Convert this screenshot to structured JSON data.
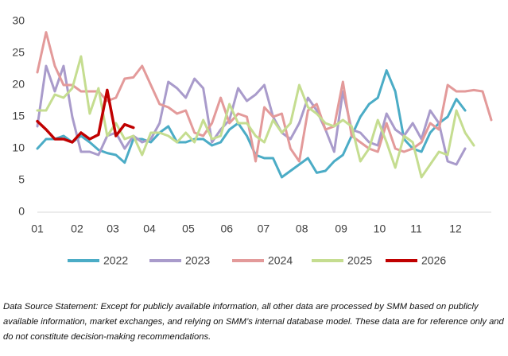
{
  "chart_data": {
    "type": "line",
    "x": [
      1,
      2,
      3,
      4,
      5,
      6,
      7,
      8,
      9,
      10,
      11,
      12,
      13,
      14,
      15,
      16,
      17,
      18,
      19,
      20,
      21,
      22,
      23,
      24,
      25,
      26,
      27,
      28,
      29,
      30,
      31,
      32,
      33,
      34,
      35,
      36,
      37,
      38,
      39,
      40,
      41,
      42,
      43,
      44,
      45,
      46,
      47,
      48,
      49,
      50,
      51,
      52,
      53
    ],
    "xlim": [
      1,
      53
    ],
    "xticks": [
      {
        "value": 1,
        "label": "01"
      },
      {
        "value": 5.55,
        "label": "02"
      },
      {
        "value": 9.65,
        "label": "03"
      },
      {
        "value": 13.84,
        "label": "04"
      },
      {
        "value": 18.3,
        "label": "05"
      },
      {
        "value": 22.7,
        "label": "06"
      },
      {
        "value": 26.9,
        "label": "07"
      },
      {
        "value": 31.3,
        "label": "08"
      },
      {
        "value": 35.8,
        "label": "09"
      },
      {
        "value": 40.2,
        "label": "10"
      },
      {
        "value": 44.4,
        "label": "11"
      },
      {
        "value": 48.9,
        "label": "12"
      }
    ],
    "ylim": [
      0,
      30
    ],
    "yticks": [
      0,
      5,
      10,
      15,
      20,
      25,
      30
    ],
    "series": [
      {
        "name": "2022",
        "color": "#4bacc6",
        "values": [
          10,
          11.5,
          11.5,
          12,
          11,
          12,
          11,
          9.8,
          9.3,
          9,
          7.8,
          11.5,
          11.5,
          11,
          12.5,
          13.5,
          11,
          11,
          11.5,
          11.5,
          10.5,
          11,
          13,
          14,
          12,
          9,
          8.5,
          8.5,
          5.5,
          6.5,
          7.5,
          8.5,
          6.2,
          6.5,
          8,
          9,
          12,
          15,
          17,
          18,
          22.3,
          19,
          11.5,
          10,
          9.5,
          12.5,
          14,
          15,
          17.8,
          16,
          null,
          null,
          null
        ]
      },
      {
        "name": "2023",
        "color": "#a99bcb",
        "values": [
          13.5,
          23,
          19,
          23,
          15,
          9.5,
          9.5,
          9,
          12,
          12.5,
          10,
          12,
          11,
          11.5,
          14,
          20.5,
          19.5,
          18,
          21,
          19.5,
          11,
          13,
          14.5,
          19.5,
          17.5,
          18.5,
          20,
          15,
          12.5,
          11.5,
          14,
          18,
          16,
          13,
          9.5,
          19,
          13,
          12.5,
          11,
          10.5,
          15.5,
          13,
          12,
          14,
          11.5,
          16,
          14,
          8,
          7.5,
          10,
          null,
          null,
          null
        ]
      },
      {
        "name": "2024",
        "color": "#e39a9a",
        "values": [
          22,
          28.3,
          23,
          20,
          20,
          19,
          19,
          19,
          17.5,
          18,
          21,
          21.2,
          23,
          20,
          17,
          16.5,
          15.5,
          16,
          12.5,
          12,
          14,
          18,
          14,
          15.5,
          15,
          8,
          16.5,
          15,
          15.5,
          10,
          8,
          16,
          17,
          13,
          13.5,
          20.5,
          12,
          11,
          10,
          9.5,
          14,
          10,
          9.5,
          10,
          11,
          14,
          13,
          20,
          19,
          19,
          19.2,
          19,
          14.5
        ]
      },
      {
        "name": "2025",
        "color": "#c5dd90",
        "values": [
          16,
          16,
          18.5,
          18,
          19.5,
          24.5,
          15.5,
          19.5,
          12,
          14,
          11.5,
          12,
          9,
          12.5,
          12.5,
          12,
          11,
          12.5,
          11,
          14.5,
          11.5,
          12,
          17,
          14,
          14,
          12,
          11,
          14.5,
          12.5,
          14,
          20,
          16.5,
          15.5,
          14,
          13.5,
          14.5,
          13.5,
          8,
          10,
          14.5,
          11,
          7,
          12,
          11,
          5.5,
          7.5,
          9.5,
          9,
          16,
          12.5,
          10.5,
          null,
          null
        ]
      },
      {
        "name": "2026",
        "color": "#c00000",
        "values": [
          14.3,
          13,
          11.5,
          11.5,
          11,
          12.5,
          11.5,
          12.2,
          19.2,
          12,
          13.8,
          13.3,
          null,
          null,
          null,
          null,
          null,
          null,
          null,
          null,
          null,
          null,
          null,
          null,
          null,
          null,
          null,
          null,
          null,
          null,
          null,
          null,
          null,
          null,
          null,
          null,
          null,
          null,
          null,
          null,
          null,
          null,
          null,
          null,
          null,
          null,
          null,
          null,
          null,
          null,
          null,
          null,
          null
        ]
      }
    ],
    "source_note": "Data Source Statement: Except for publicly available information, all other data are processed by SMM based on publicly available information, market exchanges, and relying on SMM’s internal database model. These data are for reference only and do not constitute decision-making recommendations."
  }
}
